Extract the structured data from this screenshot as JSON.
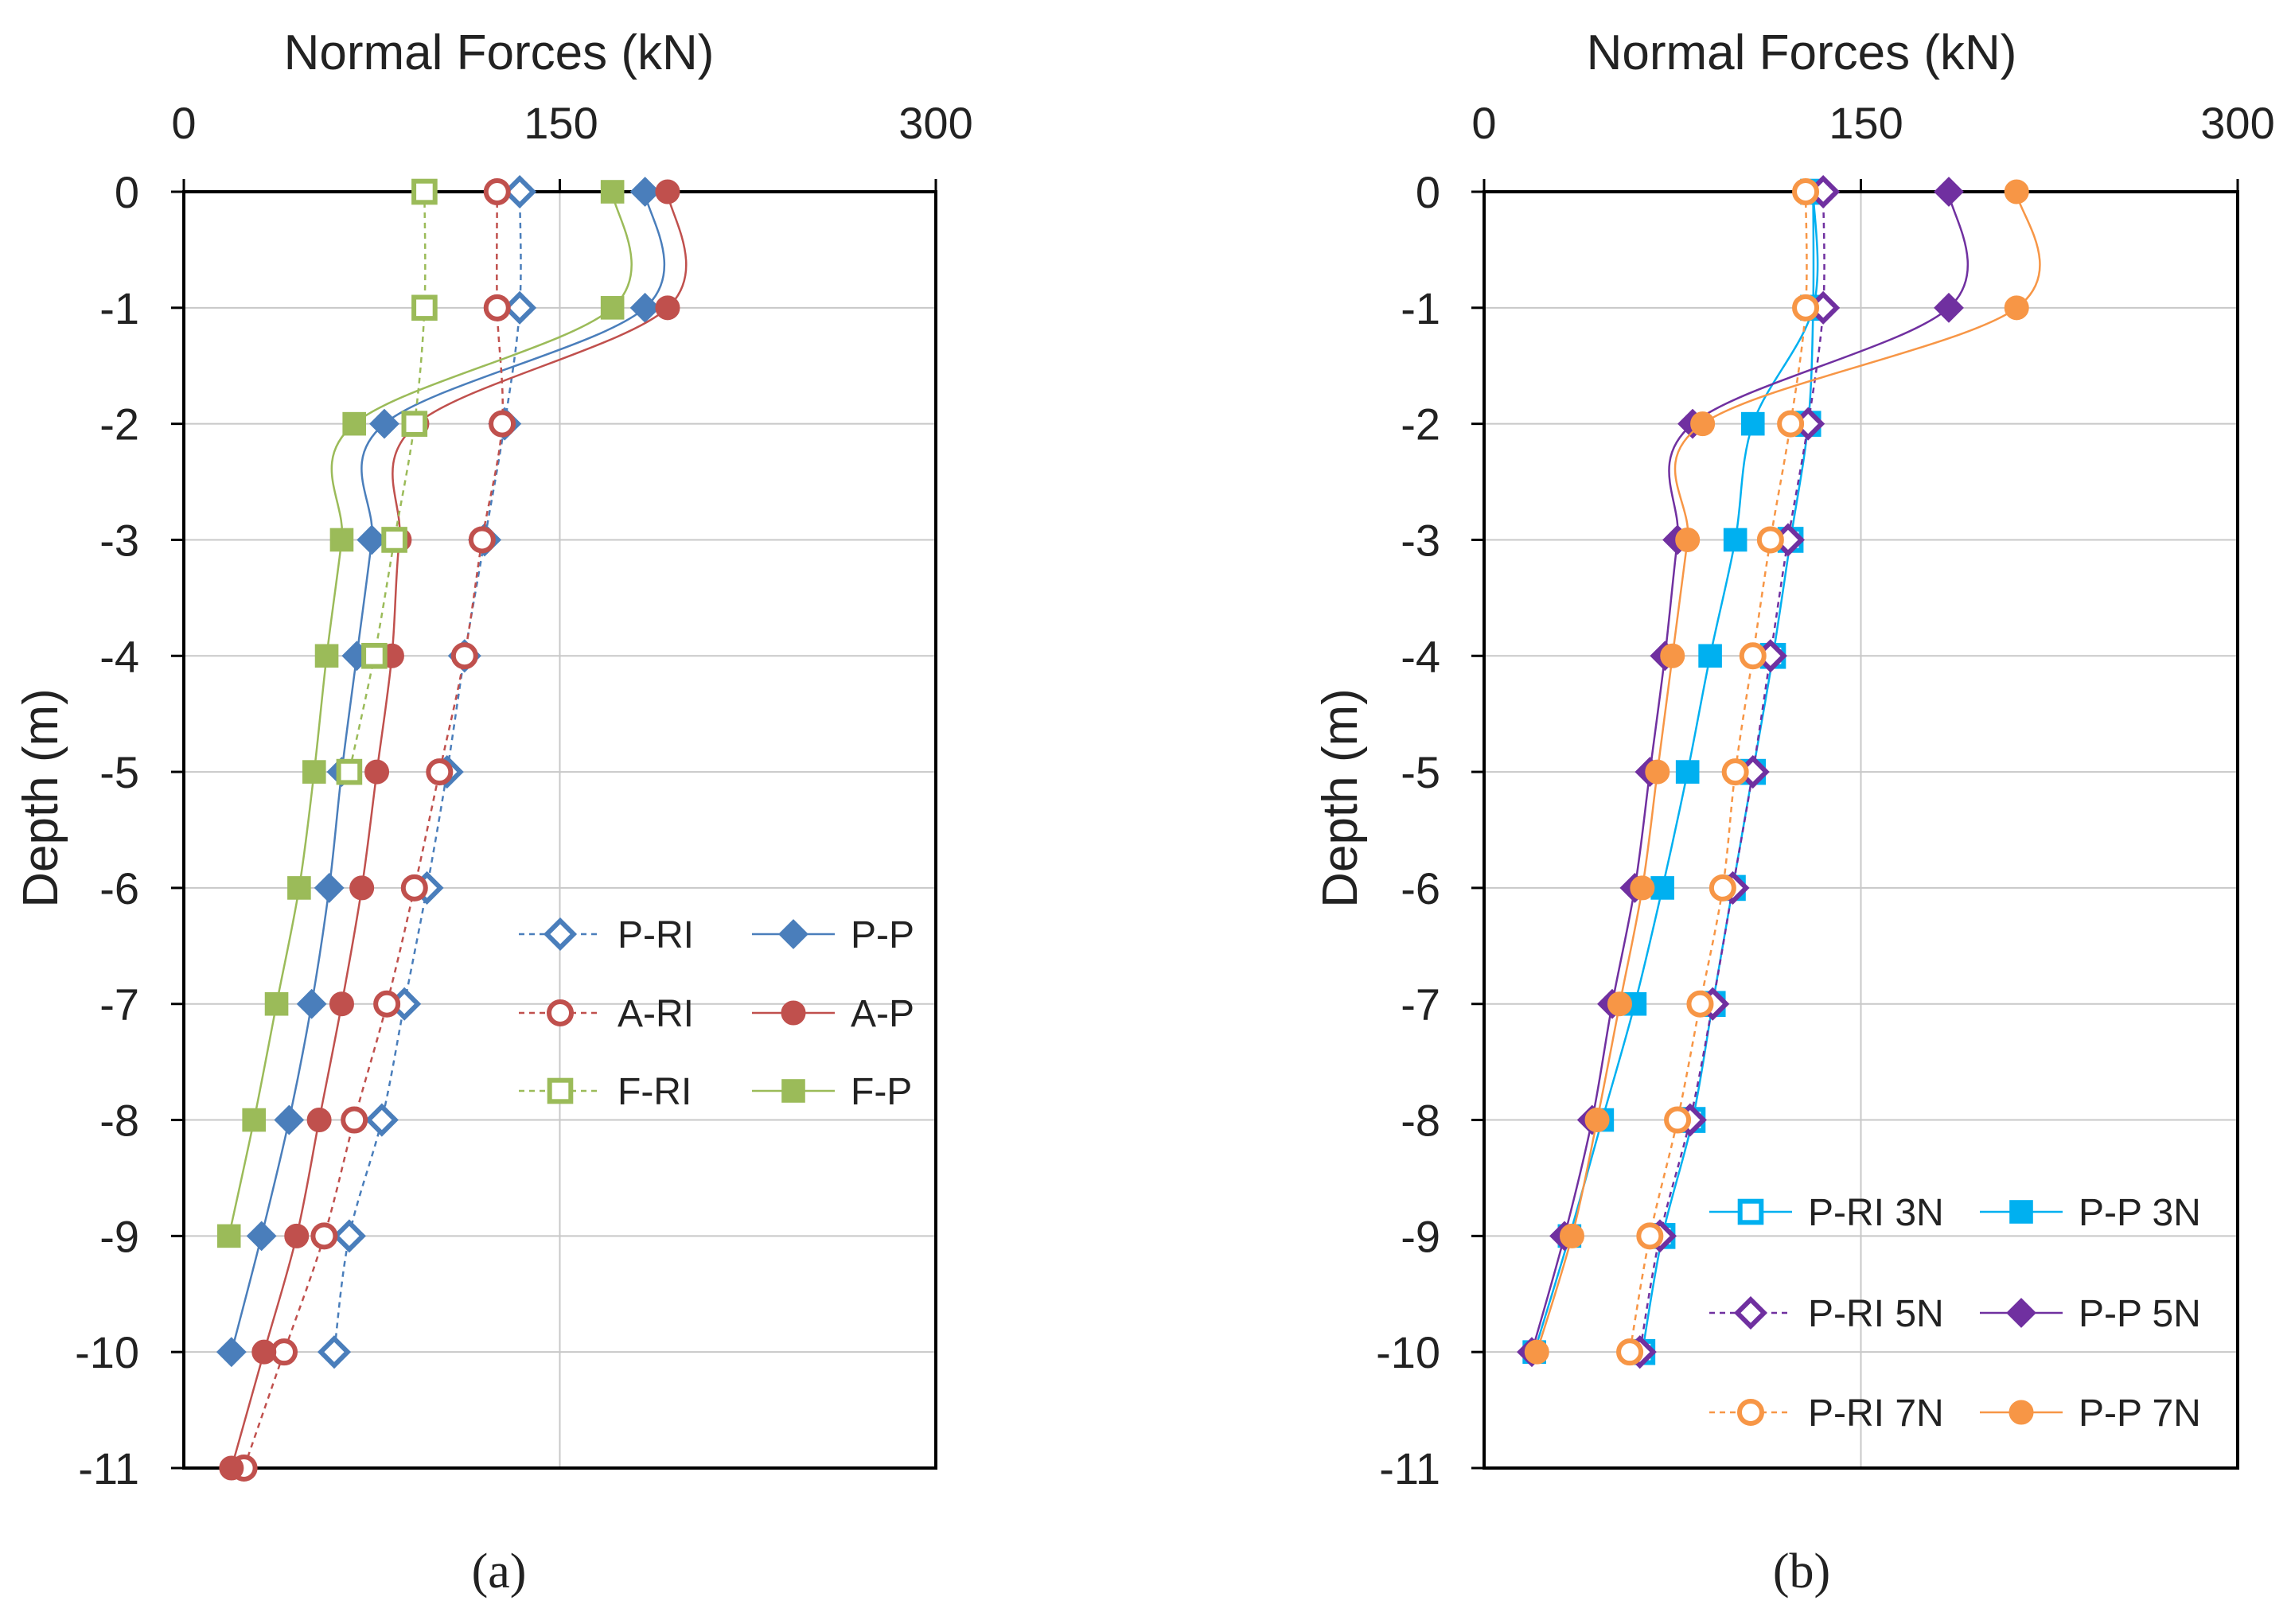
{
  "chart_data": [
    {
      "type": "scatter",
      "panel_label": "(a)",
      "title": "",
      "xlabel": "Normal Forces (kN)",
      "ylabel": "Depth (m)",
      "xlim": [
        0,
        300
      ],
      "ylim": [
        -11,
        0
      ],
      "x_ticks": [
        0,
        150,
        300
      ],
      "y_ticks": [
        0,
        -1,
        -2,
        -3,
        -4,
        -5,
        -6,
        -7,
        -8,
        -9,
        -10,
        -11
      ],
      "x_axis_position": "top",
      "legend_position": "lower-right",
      "series": [
        {
          "name": "P-RI",
          "color": "#4a7ebb",
          "marker": "diamond",
          "filled": false,
          "dashed": true,
          "depth": [
            0,
            -1,
            -2,
            -3,
            -4,
            -5,
            -6,
            -7,
            -8,
            -9,
            -10
          ],
          "force": [
            134,
            134,
            128,
            120,
            112,
            105,
            97,
            88,
            79,
            66,
            60
          ]
        },
        {
          "name": "P-P",
          "color": "#4a7ebb",
          "marker": "diamond",
          "filled": true,
          "dashed": false,
          "depth": [
            0,
            -1,
            -2,
            -3,
            -4,
            -5,
            -6,
            -7,
            -8,
            -9,
            -10
          ],
          "force": [
            184,
            184,
            80,
            75,
            69,
            63,
            58,
            51,
            42,
            31,
            19
          ]
        },
        {
          "name": "A-RI",
          "color": "#c0504d",
          "marker": "circle",
          "filled": false,
          "dashed": true,
          "depth": [
            0,
            -1,
            -2,
            -3,
            -4,
            -5,
            -6,
            -7,
            -8,
            -9,
            -10,
            -11
          ],
          "force": [
            125,
            125,
            127,
            119,
            112,
            102,
            92,
            81,
            68,
            56,
            40,
            24
          ]
        },
        {
          "name": "A-P",
          "color": "#c0504d",
          "marker": "circle",
          "filled": true,
          "dashed": false,
          "depth": [
            0,
            -1,
            -2,
            -3,
            -4,
            -5,
            -6,
            -7,
            -8,
            -9,
            -10,
            -11
          ],
          "force": [
            193,
            193,
            93,
            86,
            83,
            77,
            71,
            63,
            54,
            45,
            32,
            19
          ]
        },
        {
          "name": "F-RI",
          "color": "#9bbb59",
          "marker": "square",
          "filled": false,
          "dashed": true,
          "depth": [
            0,
            -1,
            -2,
            -3,
            -4,
            -5
          ],
          "force": [
            96,
            96,
            92,
            84,
            76,
            66
          ]
        },
        {
          "name": "F-P",
          "color": "#9bbb59",
          "marker": "square",
          "filled": true,
          "dashed": false,
          "depth": [
            0,
            -1,
            -2,
            -3,
            -4,
            -5,
            -6,
            -7,
            -8,
            -9
          ],
          "force": [
            171,
            171,
            68,
            63,
            57,
            52,
            46,
            37,
            28,
            18
          ]
        }
      ]
    },
    {
      "type": "scatter",
      "panel_label": "(b)",
      "title": "",
      "xlabel": "Normal Forces (kN)",
      "ylabel": "Depth (m)",
      "xlim": [
        0,
        300
      ],
      "ylim": [
        -11,
        0
      ],
      "x_ticks": [
        0,
        150,
        300
      ],
      "y_ticks": [
        0,
        -1,
        -2,
        -3,
        -4,
        -5,
        -6,
        -7,
        -8,
        -9,
        -10,
        -11
      ],
      "x_axis_position": "top",
      "legend_position": "lower-right",
      "series": [
        {
          "name": "P-RI 3N",
          "color": "#00b0f0",
          "marker": "square",
          "filled": false,
          "dashed": false,
          "depth": [
            0,
            -1,
            -2,
            -3,
            -4,
            -5,
            -6,
            -7,
            -8,
            -9,
            -10
          ],
          "force": [
            131,
            131,
            129,
            122,
            115,
            107,
            99,
            91,
            83,
            71,
            63
          ]
        },
        {
          "name": "P-P 3N",
          "color": "#00b0f0",
          "marker": "square",
          "filled": true,
          "dashed": false,
          "depth": [
            0,
            -1,
            -2,
            -3,
            -4,
            -5,
            -6,
            -7,
            -8,
            -9,
            -10
          ],
          "force": [
            131,
            131,
            107,
            100,
            90,
            81,
            71,
            60,
            47,
            34,
            20
          ]
        },
        {
          "name": "P-RI 5N",
          "color": "#7030a0",
          "marker": "diamond",
          "filled": false,
          "dashed": true,
          "depth": [
            0,
            -1,
            -2,
            -3,
            -4,
            -5,
            -6,
            -7,
            -8,
            -9,
            -10
          ],
          "force": [
            135,
            135,
            129,
            121,
            114,
            107,
            99,
            91,
            82,
            70,
            62
          ]
        },
        {
          "name": "P-P 5N",
          "color": "#7030a0",
          "marker": "diamond",
          "filled": true,
          "dashed": false,
          "depth": [
            0,
            -1,
            -2,
            -3,
            -4,
            -5,
            -6,
            -7,
            -8,
            -9,
            -10
          ],
          "force": [
            185,
            185,
            83,
            77,
            72,
            66,
            60,
            51,
            43,
            32,
            19
          ]
        },
        {
          "name": "P-RI 7N",
          "color": "#f79646",
          "marker": "circle",
          "filled": false,
          "dashed": true,
          "depth": [
            0,
            -1,
            -2,
            -3,
            -4,
            -5,
            -6,
            -7,
            -8,
            -9,
            -10
          ],
          "force": [
            128,
            128,
            122,
            114,
            107,
            100,
            95,
            86,
            77,
            66,
            58
          ]
        },
        {
          "name": "P-P 7N",
          "color": "#f79646",
          "marker": "circle",
          "filled": true,
          "dashed": false,
          "depth": [
            0,
            -1,
            -2,
            -3,
            -4,
            -5,
            -6,
            -7,
            -8,
            -9,
            -10
          ],
          "force": [
            212,
            212,
            87,
            81,
            75,
            69,
            63,
            54,
            45,
            35,
            21
          ]
        }
      ]
    }
  ]
}
